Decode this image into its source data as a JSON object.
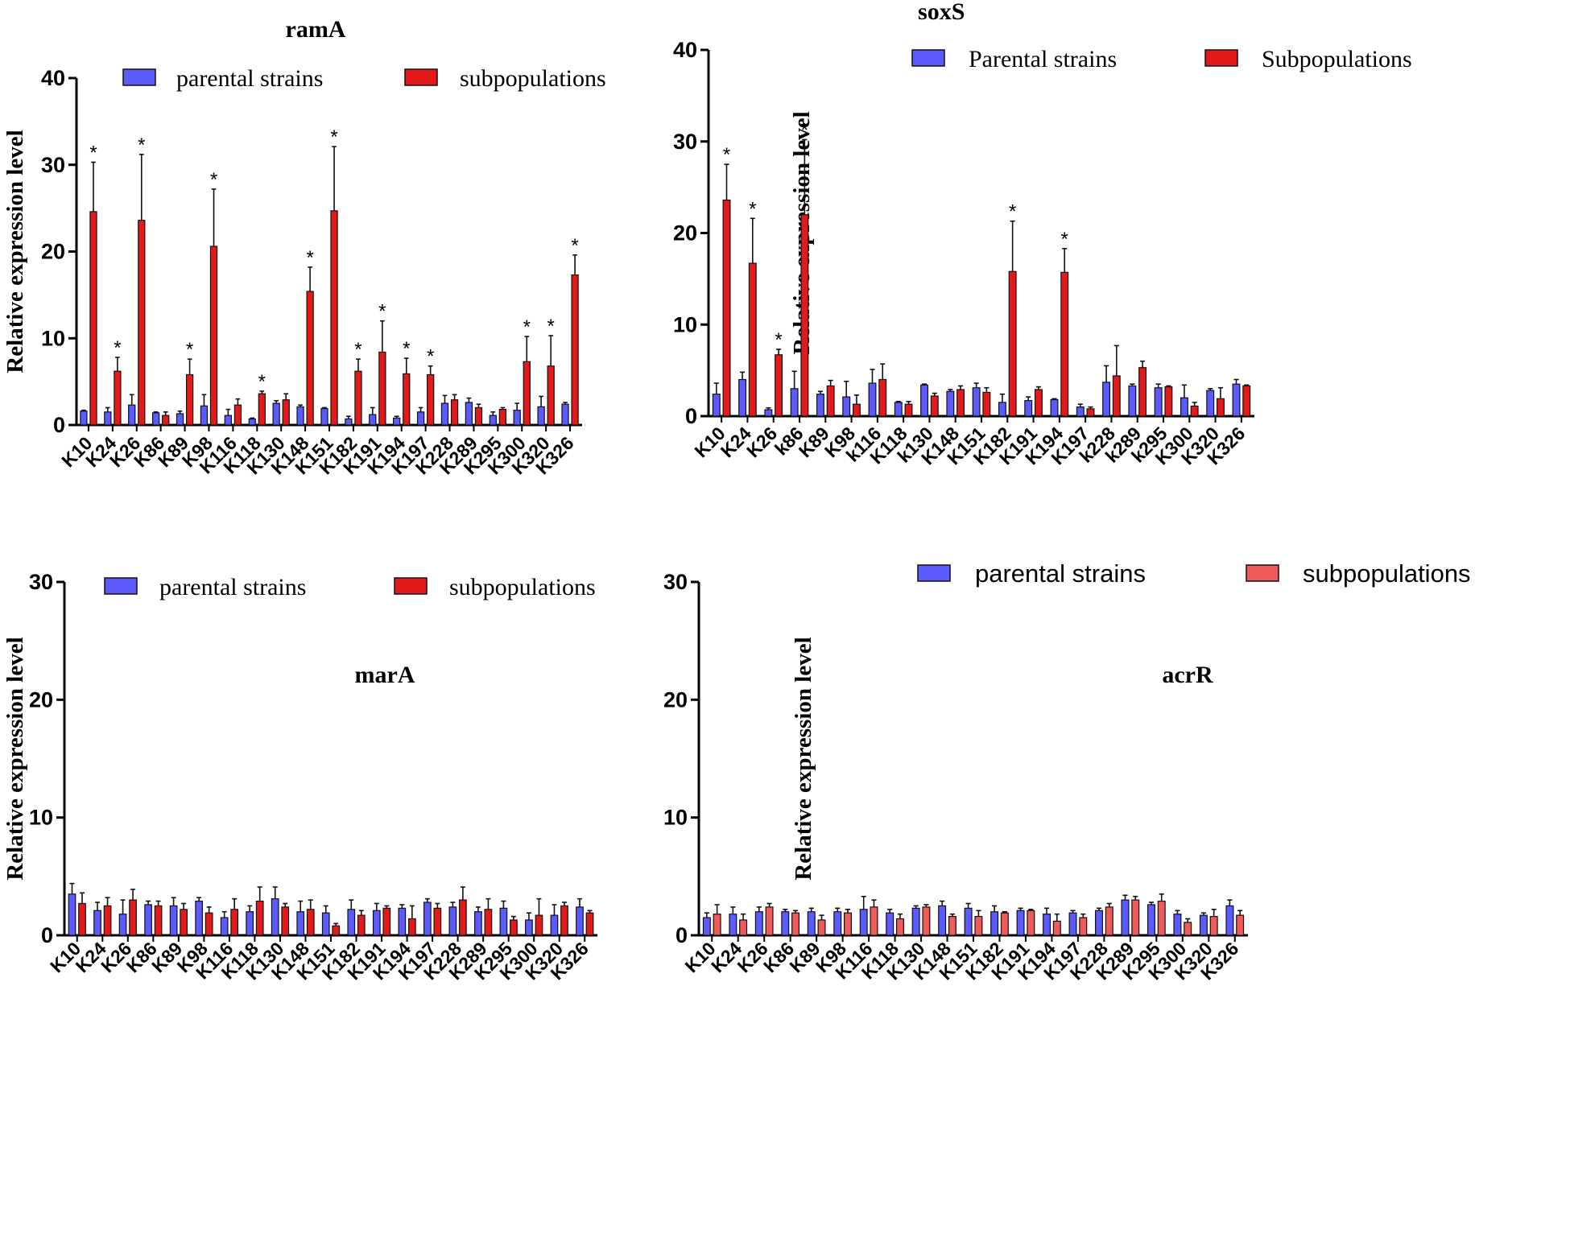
{
  "colors": {
    "parental": "#5a5aff",
    "sub_dark": "#e41a1a",
    "sub_light": "#f05a5a",
    "axis": "#000000"
  },
  "chart_data": [
    {
      "type": "bar",
      "title": "ramA",
      "ylabel": "Relative expression level",
      "xlabel": "",
      "ylim": [
        0,
        40
      ],
      "yticks": [
        "0",
        "10",
        "20",
        "30",
        "40"
      ],
      "legend": [
        "parental strains",
        "subpopulations"
      ],
      "legend_position": "top-center",
      "categories": [
        "K10",
        "K24",
        "K26",
        "K86",
        "K89",
        "K98",
        "K116",
        "K118",
        "K130",
        "K148",
        "K151",
        "K182",
        "K191",
        "K194",
        "K197",
        "K228",
        "K289",
        "K295",
        "K300",
        "K320",
        "K326"
      ],
      "series": [
        {
          "name": "parental strains",
          "values": [
            1.6,
            1.5,
            2.3,
            1.4,
            1.3,
            2.2,
            1.1,
            0.7,
            2.5,
            2.1,
            1.9,
            0.7,
            1.2,
            0.8,
            1.5,
            2.5,
            2.6,
            1.1,
            1.7,
            2.1,
            2.4
          ],
          "errors": [
            0.1,
            0.5,
            1.2,
            0.1,
            0.3,
            1.3,
            0.7,
            0.1,
            0.3,
            0.2,
            0.1,
            0.3,
            0.8,
            0.2,
            0.5,
            0.9,
            0.5,
            0.4,
            0.8,
            1.2,
            0.2
          ]
        },
        {
          "name": "subpopulations",
          "values": [
            24.6,
            6.2,
            23.6,
            1.1,
            5.8,
            20.6,
            2.3,
            3.6,
            2.9,
            15.4,
            24.7,
            6.2,
            8.4,
            5.9,
            5.8,
            2.9,
            2.0,
            1.8,
            7.3,
            6.8,
            17.3
          ],
          "errors": [
            5.7,
            1.6,
            7.6,
            0.4,
            1.8,
            6.6,
            0.7,
            0.3,
            0.7,
            2.8,
            7.4,
            1.4,
            3.6,
            1.8,
            1.0,
            0.6,
            0.4,
            0.2,
            2.9,
            3.5,
            2.3
          ]
        }
      ],
      "significant": [
        true,
        true,
        true,
        false,
        true,
        true,
        false,
        true,
        false,
        true,
        true,
        true,
        true,
        true,
        true,
        false,
        false,
        false,
        true,
        true,
        true
      ],
      "annotation_symbol": "*"
    },
    {
      "type": "bar",
      "title": "soxS",
      "ylabel": "Relative expression level",
      "xlabel": "",
      "ylim": [
        0,
        40
      ],
      "yticks": [
        "0",
        "10",
        "20",
        "30",
        "40"
      ],
      "legend": [
        "Parental strains",
        "Subpopulations"
      ],
      "legend_position": "top-center",
      "categories": [
        "K10",
        "K24",
        "K26",
        "k86",
        "K89",
        "K98",
        "k116",
        "K118",
        "k130",
        "K148",
        "K151",
        "K182",
        "K191",
        "K194",
        "K197",
        "k228",
        "k289",
        "k295",
        "K300",
        "K320",
        "K326"
      ],
      "series": [
        {
          "name": "Parental strains",
          "values": [
            2.4,
            4.0,
            0.7,
            3.0,
            2.4,
            2.1,
            3.6,
            1.5,
            3.4,
            2.7,
            3.1,
            1.5,
            1.7,
            1.8,
            1.0,
            3.7,
            3.3,
            3.1,
            2.0,
            2.8,
            3.5
          ],
          "errors": [
            1.2,
            0.8,
            0.2,
            1.9,
            0.3,
            1.7,
            1.5,
            0.1,
            0.1,
            0.2,
            0.5,
            0.9,
            0.4,
            0.1,
            0.3,
            1.8,
            0.2,
            0.4,
            1.4,
            0.2,
            0.5
          ]
        },
        {
          "name": "Subpopulations",
          "values": [
            23.6,
            16.7,
            6.7,
            22.0,
            3.3,
            1.3,
            4.0,
            1.3,
            2.2,
            2.9,
            2.6,
            15.8,
            2.9,
            15.7,
            0.8,
            4.4,
            5.3,
            3.2,
            1.1,
            1.9,
            3.3
          ],
          "errors": [
            3.9,
            4.9,
            0.6,
            8.2,
            0.6,
            1.0,
            1.7,
            0.3,
            0.3,
            0.4,
            0.5,
            5.5,
            0.3,
            2.6,
            0.2,
            3.3,
            0.7,
            0.1,
            0.4,
            1.2,
            0.1
          ]
        }
      ],
      "significant": [
        true,
        true,
        true,
        true,
        false,
        false,
        false,
        false,
        false,
        false,
        false,
        true,
        false,
        true,
        false,
        false,
        false,
        false,
        false,
        false,
        false
      ],
      "annotation_symbol": "*"
    },
    {
      "type": "bar",
      "title": "marA",
      "ylabel": "Relative expression level",
      "xlabel": "",
      "ylim": [
        0,
        30
      ],
      "yticks": [
        "0",
        "10",
        "20",
        "30"
      ],
      "legend": [
        "parental strains",
        "subpopulations"
      ],
      "legend_position": "top-center",
      "categories": [
        "K10",
        "K24",
        "K26",
        "K86",
        "K89",
        "K98",
        "K116",
        "K118",
        "K130",
        "K148",
        "K151",
        "K182",
        "K191",
        "K194",
        "K197",
        "K228",
        "K289",
        "K295",
        "K300",
        "K320",
        "K326"
      ],
      "series": [
        {
          "name": "parental strains",
          "values": [
            3.5,
            2.1,
            1.8,
            2.6,
            2.5,
            2.9,
            1.5,
            2.0,
            3.1,
            2.0,
            1.9,
            2.2,
            2.1,
            2.3,
            2.8,
            2.4,
            2.0,
            2.3,
            1.3,
            1.7,
            2.4
          ],
          "errors": [
            0.9,
            0.7,
            1.2,
            0.3,
            0.7,
            0.3,
            0.5,
            0.5,
            1.0,
            0.9,
            0.6,
            0.8,
            0.6,
            0.3,
            0.3,
            0.4,
            0.4,
            0.6,
            0.6,
            0.9,
            0.7
          ]
        },
        {
          "name": "subpopulations",
          "values": [
            2.7,
            2.5,
            3.0,
            2.5,
            2.2,
            1.9,
            2.2,
            2.9,
            2.4,
            2.2,
            0.8,
            1.7,
            2.3,
            1.4,
            2.3,
            3.0,
            2.2,
            1.3,
            1.7,
            2.5,
            1.9
          ],
          "errors": [
            0.9,
            0.7,
            0.9,
            0.4,
            0.5,
            0.5,
            0.9,
            1.2,
            0.3,
            0.8,
            0.2,
            0.4,
            0.2,
            1.1,
            0.4,
            1.1,
            0.9,
            0.3,
            1.4,
            0.3,
            0.2
          ]
        }
      ],
      "significant": [
        false,
        false,
        false,
        false,
        false,
        false,
        false,
        false,
        false,
        false,
        false,
        false,
        false,
        false,
        false,
        false,
        false,
        false,
        false,
        false,
        false
      ],
      "annotation_symbol": "*"
    },
    {
      "type": "bar",
      "title": "acrR",
      "ylabel": "Relative expression level",
      "xlabel": "",
      "ylim": [
        0,
        30
      ],
      "yticks": [
        "0",
        "10",
        "20",
        "30"
      ],
      "legend": [
        "parental strains",
        "subpopulations"
      ],
      "legend_position": "top-center",
      "categories": [
        "K10",
        "K24",
        "K26",
        "K86",
        "K89",
        "K98",
        "K116",
        "K118",
        "K130",
        "K148",
        "K151",
        "K182",
        "K191",
        "K194",
        "K197",
        "K228",
        "K289",
        "K295",
        "K300",
        "K320",
        "K326"
      ],
      "series": [
        {
          "name": "parental strains",
          "values": [
            1.5,
            1.8,
            2.0,
            2.0,
            2.0,
            2.0,
            2.2,
            1.9,
            2.3,
            2.5,
            2.3,
            2.0,
            2.1,
            1.8,
            1.9,
            2.1,
            3.0,
            2.6,
            1.8,
            1.7,
            2.5
          ],
          "errors": [
            0.4,
            0.6,
            0.4,
            0.2,
            0.3,
            0.3,
            1.1,
            0.3,
            0.2,
            0.4,
            0.4,
            0.5,
            0.2,
            0.5,
            0.2,
            0.2,
            0.4,
            0.2,
            0.3,
            0.2,
            0.5
          ]
        },
        {
          "name": "subpopulations",
          "values": [
            1.8,
            1.3,
            2.4,
            1.9,
            1.3,
            1.9,
            2.4,
            1.4,
            2.4,
            1.6,
            1.6,
            1.9,
            2.1,
            1.2,
            1.5,
            2.4,
            3.0,
            2.9,
            1.1,
            1.6,
            1.7
          ],
          "errors": [
            0.8,
            0.5,
            0.3,
            0.2,
            0.4,
            0.3,
            0.6,
            0.4,
            0.2,
            0.2,
            0.5,
            0.1,
            0.1,
            0.6,
            0.3,
            0.3,
            0.3,
            0.6,
            0.3,
            0.6,
            0.4
          ]
        }
      ],
      "significant": [
        false,
        false,
        false,
        false,
        false,
        false,
        false,
        false,
        false,
        false,
        false,
        false,
        false,
        false,
        false,
        false,
        false,
        false,
        false,
        false,
        false
      ],
      "annotation_symbol": "*"
    }
  ]
}
